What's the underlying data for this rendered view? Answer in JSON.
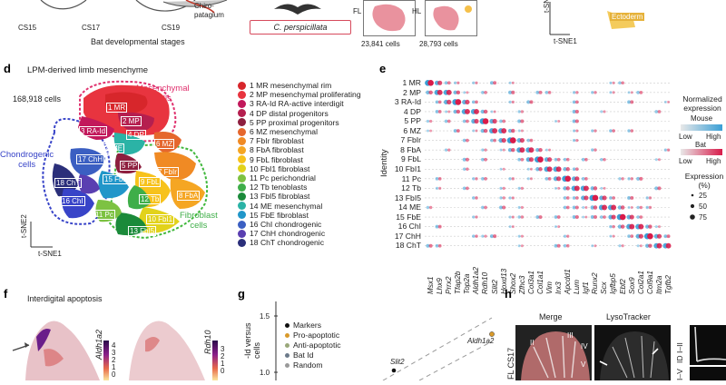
{
  "panels": {
    "top": {
      "stages": [
        "CS15",
        "CS17",
        "CS19"
      ],
      "chiropatagium": "Chiro-\npatagium",
      "caption": "Bat developmental stages",
      "species": "C. perspicillata",
      "fl_label": "FL",
      "hl_label": "HL",
      "fl_cells": "23,841 cells",
      "hl_cells": "28,793 cells",
      "tsne2": "t-SNE2",
      "tsne1": "t-SNE1",
      "ectoderm": "Ectoderm"
    },
    "d": {
      "letter": "d",
      "title": "LPM-derived limb mesenchyme",
      "cell_count": "168,918 cells",
      "mesenchymal": "Mesenchymal\ncells",
      "chondrogenic": "Chondrogenic\ncells",
      "fibroblast": "Fibroblast\ncells",
      "axis_y": "t-SNE2",
      "axis_x": "t-SNE1",
      "cluster_tags": [
        "1 MR",
        "2 MP",
        "3 RA-Id",
        "4 DP",
        "5 PP",
        "6 MZ",
        "7 FbIr",
        "8 FbA",
        "9 FbL",
        "10 FbI1",
        "11 Pc",
        "12 Tb",
        "13 FbI5",
        "14 ME",
        "15 FbE",
        "16 ChI",
        "17 ChH",
        "18 ChT"
      ],
      "legend": [
        {
          "label": "1 MR mesenchymal rim",
          "color": "#d7262b"
        },
        {
          "label": "2 MP mesenchymal proliferating",
          "color": "#e8343f"
        },
        {
          "label": "3 RA-Id RA-active interdigit",
          "color": "#c2185b"
        },
        {
          "label": "4 DP distal progenitors",
          "color": "#b51f4f"
        },
        {
          "label": "5 PP proximal progenitors",
          "color": "#8e1f3f"
        },
        {
          "label": "6 MZ mesenchymal",
          "color": "#e5672d"
        },
        {
          "label": "7 FbIr fibroblast",
          "color": "#f08a24"
        },
        {
          "label": "8 FbA fibroblast",
          "color": "#f5a623"
        },
        {
          "label": "9 FbL fibroblast",
          "color": "#f7c21c"
        },
        {
          "label": "10 FbI1 fibroblast",
          "color": "#e2d21b"
        },
        {
          "label": "11 Pc perichondrial",
          "color": "#7dc242"
        },
        {
          "label": "12 Tb tenoblasts",
          "color": "#3fae49"
        },
        {
          "label": "13 FbI5 fibroblast",
          "color": "#1b8a3a"
        },
        {
          "label": "14 ME mesenchymal",
          "color": "#2bb3a6"
        },
        {
          "label": "15 FbE fibroblast",
          "color": "#2196c9"
        },
        {
          "label": "16 ChI chondrogenic",
          "color": "#3b5fc2"
        },
        {
          "label": "17 ChH chondrogenic",
          "color": "#5a3fb1"
        },
        {
          "label": "18 ChT chondrogenic",
          "color": "#2b2f7a"
        }
      ]
    },
    "e": {
      "letter": "e",
      "y_axis_label": "Identity",
      "rows": [
        "1 MR",
        "2 MP",
        "3 RA-Id",
        "4 DP",
        "5 PP",
        "6 MZ",
        "7 FbIr",
        "8 FbA",
        "9 FbL",
        "10 FbI1",
        "11 Pc",
        "12 Tb",
        "13 FbI5",
        "14 ME",
        "15 FbE",
        "16 ChI",
        "17 ChH",
        "18 ChT"
      ],
      "genes": [
        "Msx1",
        "Lhx9",
        "Prrx2",
        "Tfap2b",
        "Top2a",
        "Aldh1a2",
        "Rdh10",
        "Slit2",
        "Hoxd13",
        "Shox2",
        "Zfhc3",
        "Col3a1",
        "Col1a1",
        "Vim",
        "Irx3",
        "Apcdd1",
        "Lum",
        "Igf1",
        "Runx2",
        "Scx",
        "Igfbp5",
        "Ebf2",
        "Sox9",
        "Col2a1",
        "Col9a1",
        "Itm2a",
        "Tgfb2"
      ],
      "legend_title": "Normalized\nexpression",
      "legend_mouse": "Mouse",
      "legend_bat": "Bat",
      "low": "Low",
      "high": "High",
      "expr_title": "Expression\n(%)",
      "expr_values": [
        "25",
        "50",
        "75"
      ],
      "mouse_color": "#3a9fd6",
      "bat_color": "#d81b4a"
    },
    "f": {
      "letter": "f",
      "title": "Interdigital apoptosis",
      "gene1": "Aldh1a2",
      "gene2": "Rdh10",
      "scale1": [
        "4",
        "3",
        "2",
        "1",
        "0"
      ],
      "scale2": [
        "3",
        "2",
        "1",
        "0"
      ]
    },
    "g": {
      "letter": "g",
      "tick_top": "1.5",
      "tick_mid": "1.0",
      "legend": [
        {
          "label": "Markers",
          "color": "#111111"
        },
        {
          "label": "Pro-apoptotic",
          "color": "#d99a2b"
        },
        {
          "label": "Anti-apoptotic",
          "color": "#9aa87a"
        },
        {
          "label": "Bat Id",
          "color": "#6c7a8a"
        },
        {
          "label": "Random",
          "color": "#9a9a9a"
        }
      ],
      "point_labels": [
        "Aldh1a2",
        "Slit2"
      ],
      "y_label": "-Id versus\ncells"
    },
    "h": {
      "letter": "h",
      "merge": "Merge",
      "lysotracker": "LysoTracker",
      "side_label": "FL CS17",
      "roman": [
        "II",
        "III",
        "IV",
        "V"
      ],
      "right_labels": [
        "ID I–II",
        "I–V"
      ]
    }
  }
}
